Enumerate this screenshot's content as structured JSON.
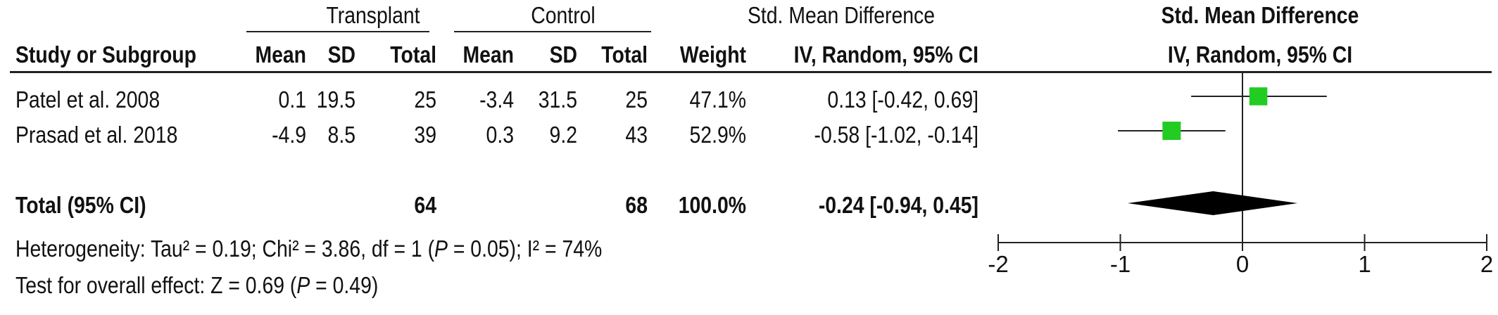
{
  "header": {
    "group_exp": "Transplant",
    "group_ctrl": "Control",
    "effect_title": "Std. Mean Difference",
    "plot_title": "Std. Mean Difference",
    "cols": {
      "study": "Study or Subgroup",
      "mean": "Mean",
      "sd": "SD",
      "total": "Total",
      "weight": "Weight",
      "method": "IV, Random, 95% CI"
    },
    "plot_method": "IV, Random, 95% CI"
  },
  "studies": [
    {
      "name": "Patel et al. 2008",
      "exp_mean": "0.1",
      "exp_sd": "19.5",
      "exp_total": "25",
      "ctrl_mean": "-3.4",
      "ctrl_sd": "31.5",
      "ctrl_total": "25",
      "weight": "47.1%",
      "ci_text": "0.13 [-0.42, 0.69]"
    },
    {
      "name": "Prasad et al. 2018",
      "exp_mean": "-4.9",
      "exp_sd": "8.5",
      "exp_total": "39",
      "ctrl_mean": "0.3",
      "ctrl_sd": "9.2",
      "ctrl_total": "43",
      "weight": "52.9%",
      "ci_text": "-0.58 [-1.02, -0.14]"
    }
  ],
  "total": {
    "label": "Total (95% CI)",
    "exp_total": "64",
    "ctrl_total": "68",
    "weight": "100.0%",
    "ci_text": "-0.24 [-0.94, 0.45]"
  },
  "heterogeneity": {
    "prefix": "Heterogeneity: Tau² = 0.19; Chi² = 3.86, df = 1 (",
    "p_label": "P",
    "suffix": " = 0.05); I² = 74%"
  },
  "overall_effect": {
    "prefix": "Test for overall effect: Z = 0.69 (",
    "p_label": "P",
    "suffix": " = 0.49)"
  },
  "chart_data": {
    "type": "forest",
    "xlim": [
      -2,
      2
    ],
    "xticks": [
      "-2",
      "-1",
      "0",
      "1",
      "2"
    ],
    "points": [
      {
        "name": "Patel et al. 2008",
        "estimate": 0.13,
        "lower": -0.42,
        "upper": 0.69,
        "weight": 47.1
      },
      {
        "name": "Prasad et al. 2018",
        "estimate": -0.58,
        "lower": -1.02,
        "upper": -0.14,
        "weight": 52.9
      }
    ],
    "pooled": {
      "estimate": -0.24,
      "lower": -0.94,
      "upper": 0.45
    },
    "marker_color": "#22cc22",
    "diamond_color": "#000000"
  }
}
